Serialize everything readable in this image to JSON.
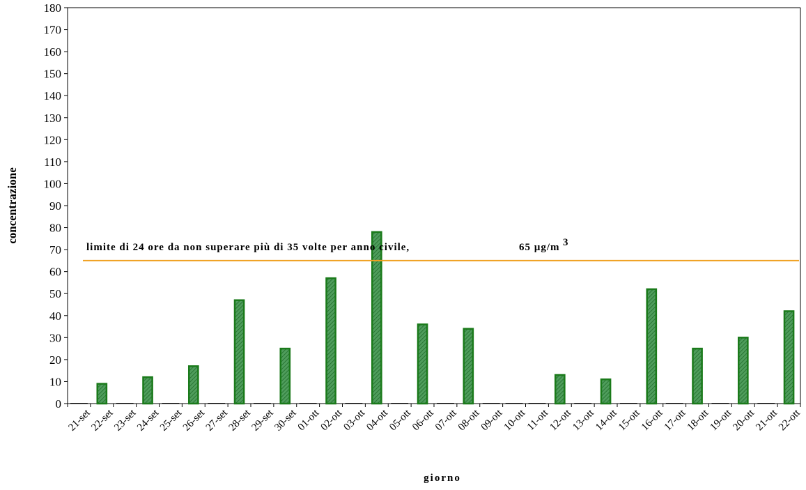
{
  "chart_data": {
    "type": "bar",
    "ylabel": "concentrazione",
    "xlabel": "giorno",
    "ylim": [
      0,
      180
    ],
    "yticks": [
      0,
      10,
      20,
      30,
      40,
      50,
      60,
      70,
      80,
      90,
      100,
      110,
      120,
      130,
      140,
      150,
      160,
      170,
      180
    ],
    "categories": [
      "21-set",
      "22-set",
      "23-set",
      "24-set",
      "25-set",
      "26-set",
      "27-set",
      "28-set",
      "29-set",
      "30-set",
      "01-ott",
      "02-ott",
      "03-ott",
      "04-ott",
      "05-ott",
      "06-ott",
      "07-ott",
      "08-ott",
      "09-ott",
      "10-ott",
      "11-ott",
      "12-ott",
      "13-ott",
      "14-ott",
      "15-ott",
      "16-ott",
      "17-ott",
      "18-ott",
      "19-ott",
      "20-ott",
      "21-ott",
      "22-ott"
    ],
    "values": [
      0,
      9,
      0,
      12,
      0,
      17,
      0,
      47,
      0,
      25,
      0,
      57,
      0,
      78,
      0,
      36,
      0,
      34,
      0,
      0,
      0,
      13,
      0,
      11,
      0,
      52,
      0,
      25,
      0,
      30,
      0,
      42
    ],
    "threshold": {
      "value": 65,
      "label": "limite di 24 ore da non superare più di 35 volte per anno civile,",
      "value_label": "65 µg/m",
      "value_label_sup": "3",
      "color": "#f0a020"
    },
    "bar_color": "#2e8b3a",
    "bar_stroke": "#1a7a1a",
    "grid": false,
    "legend": "none"
  }
}
